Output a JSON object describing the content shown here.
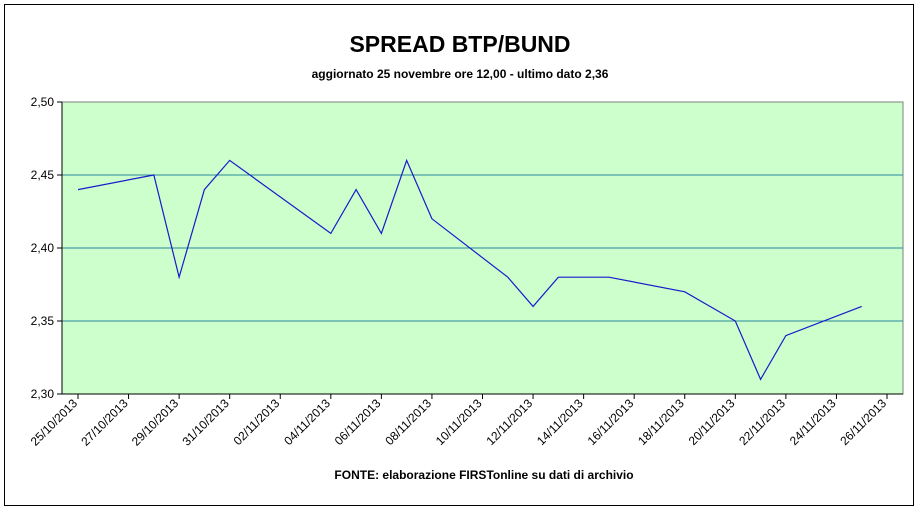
{
  "chart_data": {
    "type": "line",
    "title": "SPREAD BTP/BUND",
    "subtitle": "aggiornato 25 novembre ore 12,00 - ultimo dato 2,36",
    "source": "FONTE: elaborazione FIRSTonline su dati di archivio",
    "x": [
      "25/10/2013",
      "28/10/2013",
      "29/10/2013",
      "30/10/2013",
      "31/10/2013",
      "04/11/2013",
      "05/11/2013",
      "06/11/2013",
      "07/11/2013",
      "08/11/2013",
      "11/11/2013",
      "12/11/2013",
      "13/11/2013",
      "15/11/2013",
      "18/11/2013",
      "20/11/2013",
      "21/11/2013",
      "22/11/2013",
      "25/11/2013"
    ],
    "series": [
      {
        "name": "Spread",
        "color": "#1a1acc",
        "values": [
          2.44,
          2.45,
          2.38,
          2.44,
          2.46,
          2.41,
          2.44,
          2.41,
          2.46,
          2.42,
          2.38,
          2.36,
          2.38,
          2.38,
          2.37,
          2.35,
          2.31,
          2.34,
          2.36
        ]
      }
    ],
    "xlim": [
      "25/10/2013",
      "26/11/2013"
    ],
    "xticks": [
      "25/10/2013",
      "27/10/2013",
      "29/10/2013",
      "31/10/2013",
      "02/11/2013",
      "04/11/2013",
      "06/11/2013",
      "08/11/2013",
      "10/11/2013",
      "12/11/2013",
      "14/11/2013",
      "16/11/2013",
      "18/11/2013",
      "20/11/2013",
      "22/11/2013",
      "24/11/2013",
      "26/11/2013"
    ],
    "ylim": [
      2.3,
      2.5
    ],
    "yticks": [
      {
        "value": 2.3,
        "label": "2,30"
      },
      {
        "value": 2.35,
        "label": "2,35"
      },
      {
        "value": 2.4,
        "label": "2,40"
      },
      {
        "value": 2.45,
        "label": "2,45"
      },
      {
        "value": 2.5,
        "label": "2,50"
      }
    ],
    "grid": true,
    "plot_color": "#ccffcc",
    "grid_color": "#2a8a9a"
  }
}
